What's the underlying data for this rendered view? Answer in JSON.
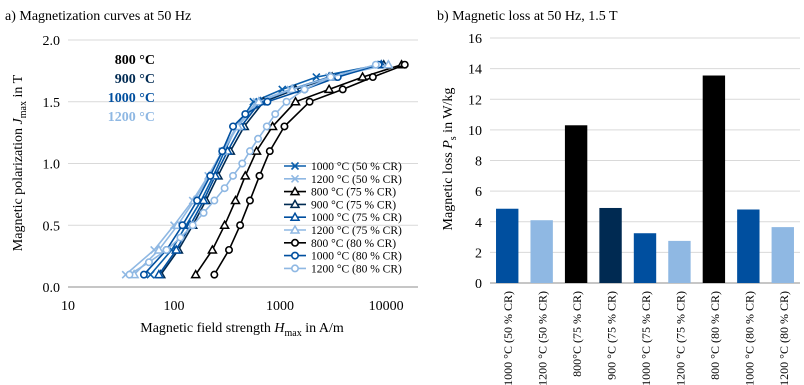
{
  "chart_data": [
    {
      "type": "line",
      "title": "a) Magnetization curves at 50 Hz",
      "xlabel": "Magnetic field strength H_max in A/m",
      "ylabel": "Magnetic polarization J_max in T",
      "xscale": "log",
      "xlim": [
        10,
        20000
      ],
      "ylim": [
        0,
        2.0
      ],
      "xticks": [
        "10",
        "100",
        "1000",
        "10000"
      ],
      "yticks": [
        "0.0",
        "0.5",
        "1.0",
        "1.5",
        "2.0"
      ],
      "grid": "horizontal",
      "legend_position": "lower-right",
      "temperature_labels": [
        {
          "text": "800 °C",
          "color": "#000000"
        },
        {
          "text": "900 °C",
          "color": "#002a52"
        },
        {
          "text": "1000 °C",
          "color": "#004f9f"
        },
        {
          "text": "1200 °C",
          "color": "#8fb8e3"
        }
      ],
      "series": [
        {
          "name": "1000 °C (50 % CR)",
          "color": "#0b5fab",
          "marker": "x",
          "points": [
            [
              60,
              0.1
            ],
            [
              95,
              0.3
            ],
            [
              130,
              0.5
            ],
            [
              180,
              0.7
            ],
            [
              235,
              0.9
            ],
            [
              300,
              1.1
            ],
            [
              390,
              1.3
            ],
            [
              560,
              1.5
            ],
            [
              1050,
              1.6
            ],
            [
              2200,
              1.7
            ],
            [
              8800,
              1.8
            ]
          ]
        },
        {
          "name": "1200 °C (50 % CR)",
          "color": "#8fb8e3",
          "marker": "x",
          "points": [
            [
              35,
              0.1
            ],
            [
              65,
              0.3
            ],
            [
              100,
              0.5
            ],
            [
              150,
              0.7
            ],
            [
              210,
              0.9
            ],
            [
              285,
              1.1
            ],
            [
              390,
              1.3
            ],
            [
              600,
              1.5
            ],
            [
              1250,
              1.6
            ],
            [
              2900,
              1.7
            ],
            [
              10000,
              1.8
            ]
          ]
        },
        {
          "name": "800 °C (75 % CR)",
          "color": "#000000",
          "marker": "triangle",
          "points": [
            [
              160,
              0.1
            ],
            [
              230,
              0.3
            ],
            [
              300,
              0.5
            ],
            [
              380,
              0.7
            ],
            [
              470,
              0.9
            ],
            [
              600,
              1.1
            ],
            [
              850,
              1.3
            ],
            [
              1400,
              1.5
            ],
            [
              2900,
              1.6
            ],
            [
              6000,
              1.7
            ],
            [
              14000,
              1.8
            ]
          ]
        },
        {
          "name": "900 °C (75 % CR)",
          "color": "#002a52",
          "marker": "triangle",
          "points": [
            [
              75,
              0.1
            ],
            [
              110,
              0.3
            ],
            [
              150,
              0.5
            ],
            [
              200,
              0.7
            ],
            [
              260,
              0.9
            ],
            [
              340,
              1.1
            ],
            [
              460,
              1.3
            ],
            [
              700,
              1.5
            ],
            [
              1400,
              1.6
            ],
            [
              3100,
              1.7
            ],
            [
              9500,
              1.8
            ]
          ]
        },
        {
          "name": "1000 °C (75 % CR)",
          "color": "#004f9f",
          "marker": "triangle",
          "points": [
            [
              72,
              0.1
            ],
            [
              105,
              0.3
            ],
            [
              142,
              0.5
            ],
            [
              190,
              0.7
            ],
            [
              245,
              0.9
            ],
            [
              320,
              1.1
            ],
            [
              430,
              1.3
            ],
            [
              650,
              1.5
            ],
            [
              1300,
              1.6
            ],
            [
              2900,
              1.7
            ],
            [
              9000,
              1.8
            ]
          ]
        },
        {
          "name": "1200 °C (75 % CR)",
          "color": "#8fb8e3",
          "marker": "triangle",
          "points": [
            [
              42,
              0.1
            ],
            [
              72,
              0.3
            ],
            [
              108,
              0.5
            ],
            [
              155,
              0.7
            ],
            [
              215,
              0.9
            ],
            [
              290,
              1.1
            ],
            [
              400,
              1.3
            ],
            [
              630,
              1.5
            ],
            [
              1300,
              1.6
            ],
            [
              3000,
              1.7
            ],
            [
              10500,
              1.8
            ]
          ]
        },
        {
          "name": "800 °C (80 % CR)",
          "color": "#000000",
          "marker": "circle",
          "points": [
            [
              240,
              0.1
            ],
            [
              330,
              0.3
            ],
            [
              420,
              0.5
            ],
            [
              520,
              0.7
            ],
            [
              640,
              0.9
            ],
            [
              800,
              1.1
            ],
            [
              1100,
              1.3
            ],
            [
              1900,
              1.5
            ],
            [
              3900,
              1.6
            ],
            [
              7500,
              1.7
            ],
            [
              15000,
              1.8
            ]
          ]
        },
        {
          "name": "1000 °C (80 % CR)",
          "color": "#004f9f",
          "marker": "circle",
          "points": [
            [
              52,
              0.1
            ],
            [
              85,
              0.3
            ],
            [
              120,
              0.5
            ],
            [
              165,
              0.7
            ],
            [
              220,
              0.9
            ],
            [
              285,
              1.1
            ],
            [
              360,
              1.3
            ],
            [
              470,
              1.4
            ],
            [
              760,
              1.5
            ],
            [
              1700,
              1.6
            ],
            [
              3500,
              1.7
            ],
            [
              8500,
              1.8
            ]
          ]
        },
        {
          "name": "1200 °C (80 % CR)",
          "color": "#8fb8e3",
          "marker": "circle",
          "points": [
            [
              38,
              0.1
            ],
            [
              58,
              0.2
            ],
            [
              85,
              0.3
            ],
            [
              115,
              0.4
            ],
            [
              150,
              0.5
            ],
            [
              190,
              0.6
            ],
            [
              240,
              0.7
            ],
            [
              300,
              0.8
            ],
            [
              360,
              0.9
            ],
            [
              440,
              1.0
            ],
            [
              520,
              1.1
            ],
            [
              620,
              1.2
            ],
            [
              750,
              1.3
            ],
            [
              900,
              1.4
            ],
            [
              1150,
              1.5
            ],
            [
              1700,
              1.6
            ],
            [
              3000,
              1.7
            ],
            [
              8000,
              1.8
            ]
          ]
        }
      ]
    },
    {
      "type": "bar",
      "title": "b) Magnetic loss at 50 Hz, 1.5 T",
      "xlabel": "",
      "ylabel": "Magnetic loss P_s in W/kg",
      "ylim": [
        0,
        16
      ],
      "yticks": [
        "0",
        "2",
        "4",
        "6",
        "8",
        "10",
        "12",
        "14",
        "16"
      ],
      "grid": "horizontal",
      "categories": [
        "1000 °C (50 % CR)",
        "1200 °C (50 % CR)",
        "800°C (75 % CR)",
        "900 °C (75 % CR)",
        "1000 °C (75 % CR)",
        "1200 °C (75 % CR)",
        "800 °C (80 % CR)",
        "1000 °C (80 % CR)",
        "1200 °C (80 % CR)"
      ],
      "values": [
        4.85,
        4.1,
        10.3,
        4.9,
        3.25,
        2.75,
        13.55,
        4.8,
        3.65
      ],
      "colors": [
        "#004f9f",
        "#8fb8e3",
        "#000000",
        "#002a52",
        "#004f9f",
        "#8fb8e3",
        "#000000",
        "#004f9f",
        "#8fb8e3"
      ]
    }
  ]
}
